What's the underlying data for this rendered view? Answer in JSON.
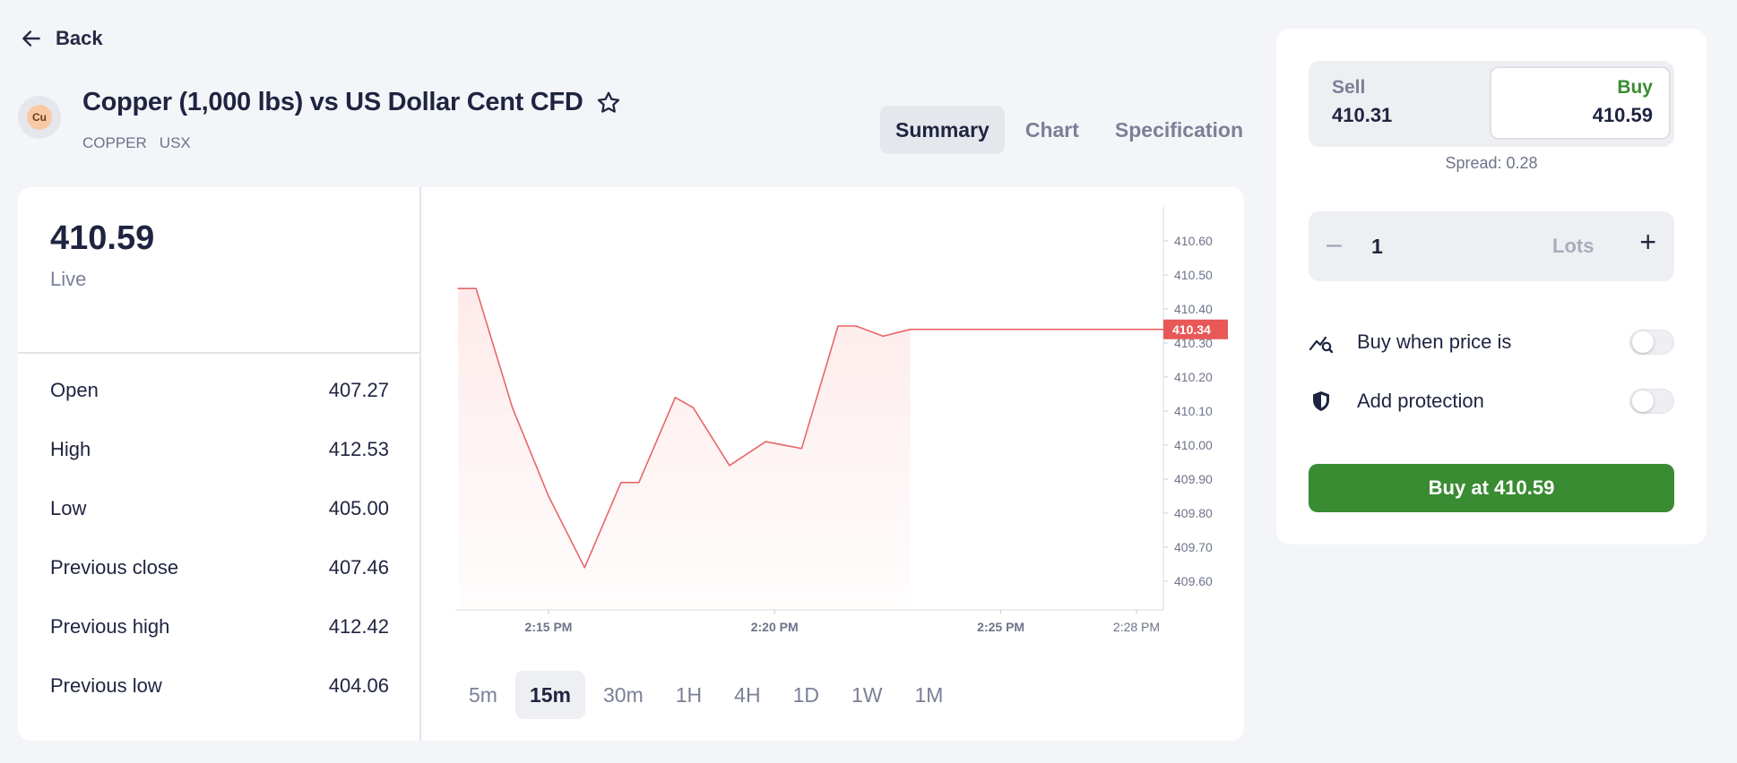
{
  "nav": {
    "back_label": "Back",
    "back_icon": "arrow-left-icon"
  },
  "instrument": {
    "logo_text": "Cu",
    "name": "Copper (1,000 lbs) vs US Dollar Cent CFD",
    "tags": [
      "COPPER",
      "USX"
    ],
    "favorite_icon": "star-outline-icon"
  },
  "tabs": [
    {
      "label": "Summary",
      "active": true
    },
    {
      "label": "Chart",
      "active": false
    },
    {
      "label": "Specification",
      "active": false
    }
  ],
  "summary": {
    "price": "410.59",
    "status": "Live",
    "stats": [
      {
        "label": "Open",
        "value": "407.27"
      },
      {
        "label": "High",
        "value": "412.53"
      },
      {
        "label": "Low",
        "value": "405.00"
      },
      {
        "label": "Previous close",
        "value": "407.46"
      },
      {
        "label": "Previous high",
        "value": "412.42"
      },
      {
        "label": "Previous low",
        "value": "404.06"
      }
    ]
  },
  "chart_data": {
    "type": "area",
    "current_price_label": "410.34",
    "current_price": 410.34,
    "y_ticks": [
      "410.60",
      "410.50",
      "410.40",
      "410.30",
      "410.20",
      "410.10",
      "410.00",
      "409.90",
      "409.80",
      "409.70",
      "409.60"
    ],
    "ylim": [
      409.6,
      410.6
    ],
    "x_ticks": [
      {
        "label": "2:15 PM",
        "t": 14.25,
        "bold": true
      },
      {
        "label": "2:20 PM",
        "t": 14.3333,
        "bold": true
      },
      {
        "label": "2:25 PM",
        "t": 14.4167,
        "bold": true
      },
      {
        "label": "2:28 PM",
        "t": 14.4667,
        "bold": false
      }
    ],
    "series": [
      {
        "values": [
          [
            14.2167,
            410.46
          ],
          [
            14.2233,
            410.46
          ],
          [
            14.2367,
            410.11
          ],
          [
            14.25,
            409.85
          ],
          [
            14.2633,
            409.64
          ],
          [
            14.2767,
            409.89
          ],
          [
            14.2833,
            409.89
          ],
          [
            14.2967,
            410.14
          ],
          [
            14.3033,
            410.11
          ],
          [
            14.3167,
            409.94
          ],
          [
            14.33,
            410.01
          ],
          [
            14.3433,
            409.99
          ],
          [
            14.3567,
            410.35
          ],
          [
            14.3633,
            410.35
          ],
          [
            14.3733,
            410.32
          ],
          [
            14.3833,
            410.34
          ]
        ]
      }
    ],
    "colors": {
      "line": "#e86666",
      "fill": "#fde8e8",
      "label_bg": "#e85858"
    }
  },
  "ranges": [
    {
      "label": "5m",
      "active": false
    },
    {
      "label": "15m",
      "active": true
    },
    {
      "label": "30m",
      "active": false
    },
    {
      "label": "1H",
      "active": false
    },
    {
      "label": "4H",
      "active": false
    },
    {
      "label": "1D",
      "active": false
    },
    {
      "label": "1W",
      "active": false
    },
    {
      "label": "1M",
      "active": false
    }
  ],
  "order": {
    "sell_label": "Sell",
    "sell_price": "410.31",
    "buy_label": "Buy",
    "buy_price": "410.59",
    "spread": "Spread: 0.28",
    "quantity": "1",
    "unit": "Lots",
    "minus_symbol": "–",
    "plus_symbol": "+",
    "options": [
      {
        "label": "Buy when price is",
        "icon": "price-alert-icon",
        "enabled": false
      },
      {
        "label": "Add protection",
        "icon": "shield-icon",
        "enabled": false
      }
    ],
    "submit_label": "Buy at 410.59",
    "buy_color": "#3a8c33"
  }
}
